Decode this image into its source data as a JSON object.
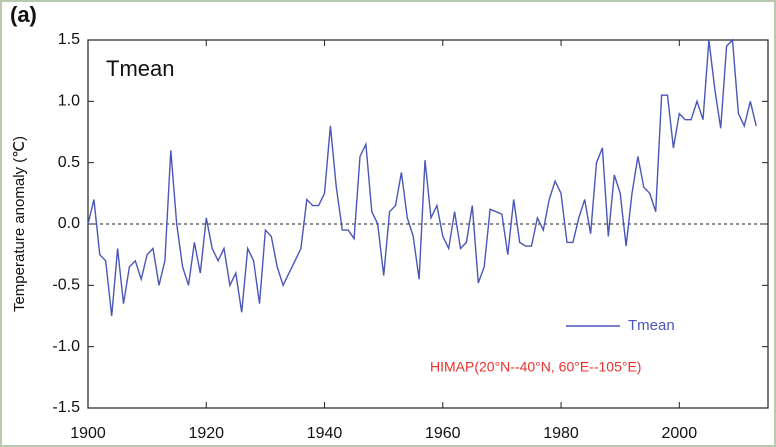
{
  "chart_data": {
    "type": "line",
    "panel_label": "(a)",
    "title": "Tmean",
    "y_label": "Temperature anomaly (℃)",
    "annotation": "HIMAP(20°N--40°N, 60°E--105°E)",
    "x": [
      1900,
      1901,
      1902,
      1903,
      1904,
      1905,
      1906,
      1907,
      1908,
      1909,
      1910,
      1911,
      1912,
      1913,
      1914,
      1915,
      1916,
      1917,
      1918,
      1919,
      1920,
      1921,
      1922,
      1923,
      1924,
      1925,
      1926,
      1927,
      1928,
      1929,
      1930,
      1931,
      1932,
      1933,
      1934,
      1935,
      1936,
      1937,
      1938,
      1939,
      1940,
      1941,
      1942,
      1943,
      1944,
      1945,
      1946,
      1947,
      1948,
      1949,
      1950,
      1951,
      1952,
      1953,
      1954,
      1955,
      1956,
      1957,
      1958,
      1959,
      1960,
      1961,
      1962,
      1963,
      1964,
      1965,
      1966,
      1967,
      1968,
      1969,
      1970,
      1971,
      1972,
      1973,
      1974,
      1975,
      1976,
      1977,
      1978,
      1979,
      1980,
      1981,
      1982,
      1983,
      1984,
      1985,
      1986,
      1987,
      1988,
      1989,
      1990,
      1991,
      1992,
      1993,
      1994,
      1995,
      1996,
      1997,
      1998,
      1999,
      2000,
      2001,
      2002,
      2003,
      2004,
      2005,
      2006,
      2007,
      2008,
      2009,
      2010,
      2011,
      2012,
      2013
    ],
    "series": [
      {
        "name": "Tmean",
        "color": "#4a56b8",
        "values": [
          0.0,
          0.2,
          -0.25,
          -0.3,
          -0.75,
          -0.2,
          -0.65,
          -0.35,
          -0.3,
          -0.45,
          -0.25,
          -0.2,
          -0.5,
          -0.3,
          0.6,
          0.0,
          -0.35,
          -0.5,
          -0.15,
          -0.4,
          0.05,
          -0.2,
          -0.3,
          -0.2,
          -0.5,
          -0.4,
          -0.72,
          -0.2,
          -0.3,
          -0.65,
          -0.05,
          -0.1,
          -0.35,
          -0.5,
          -0.4,
          -0.3,
          -0.2,
          0.2,
          0.15,
          0.15,
          0.25,
          0.8,
          0.3,
          -0.05,
          -0.05,
          -0.12,
          0.55,
          0.65,
          0.1,
          0.0,
          -0.42,
          0.1,
          0.15,
          0.42,
          0.05,
          -0.1,
          -0.45,
          0.52,
          0.05,
          0.15,
          -0.1,
          -0.2,
          0.1,
          -0.2,
          -0.15,
          0.15,
          -0.48,
          -0.35,
          0.12,
          0.1,
          0.08,
          -0.25,
          0.2,
          -0.15,
          -0.18,
          -0.18,
          0.05,
          -0.05,
          0.2,
          0.35,
          0.25,
          -0.15,
          -0.15,
          0.05,
          0.2,
          -0.08,
          0.5,
          0.62,
          -0.1,
          0.4,
          0.25,
          -0.18,
          0.25,
          0.55,
          0.3,
          0.25,
          0.1,
          1.05,
          1.05,
          0.62,
          0.9,
          0.85,
          0.85,
          1.0,
          0.85,
          1.5,
          1.1,
          0.78,
          1.45,
          1.5,
          0.9,
          0.8,
          1.0,
          0.8
        ]
      }
    ],
    "xlim": [
      1900,
      2015
    ],
    "xticks": [
      1900,
      1920,
      1940,
      1960,
      1980,
      2000
    ],
    "ylim": [
      -1.5,
      1.5
    ],
    "yticks": [
      -1.5,
      {
        "value": -1.0,
        "label": "-1.0"
      },
      -0.5,
      {
        "value": 0,
        "label": "0.0"
      },
      0.5,
      {
        "value": 1,
        "label": "1.0"
      },
      1.5
    ],
    "zero_line": true,
    "legend": "lower right"
  }
}
